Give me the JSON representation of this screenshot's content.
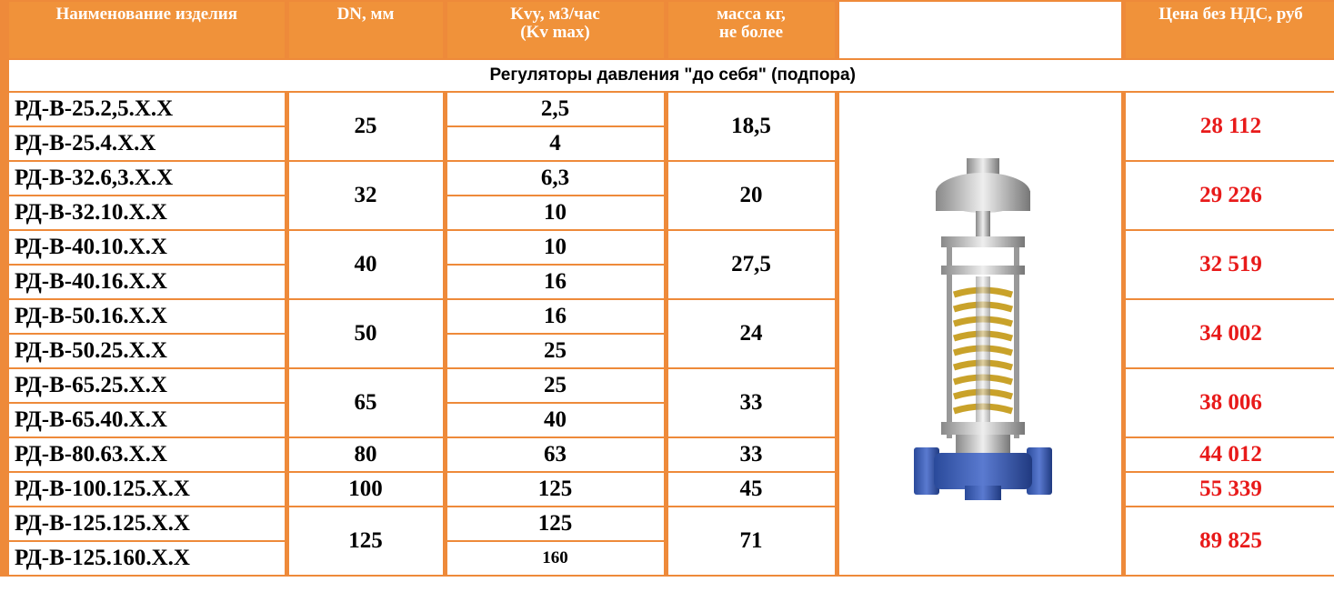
{
  "header": [
    "Наименование  изделия",
    "DN, мм",
    "Kvy, м3/час\n(Kv max)",
    "масса кг,\nне более",
    "Цена без НДС, руб"
  ],
  "section": "Регуляторы давления \"до себя\" (подпора)",
  "groups": [
    {
      "dn": "25",
      "mass": "18,5",
      "price": "28 112",
      "items": [
        {
          "name": "РД-В-25.2,5.Х.Х",
          "kv": "2,5"
        },
        {
          "name": "РД-В-25.4.Х.Х",
          "kv": "4"
        }
      ]
    },
    {
      "dn": "32",
      "mass": "20",
      "price": "29 226",
      "items": [
        {
          "name": "РД-В-32.6,3.Х.Х",
          "kv": "6,3"
        },
        {
          "name": "РД-В-32.10.Х.Х",
          "kv": "10"
        }
      ]
    },
    {
      "dn": "40",
      "mass": "27,5",
      "price": "32 519",
      "items": [
        {
          "name": "РД-В-40.10.Х.Х",
          "kv": "10"
        },
        {
          "name": "РД-В-40.16.Х.Х",
          "kv": "16"
        }
      ]
    },
    {
      "dn": "50",
      "mass": "24",
      "price": "34 002",
      "items": [
        {
          "name": "РД-В-50.16.Х.Х",
          "kv": "16"
        },
        {
          "name": "РД-В-50.25.Х.Х",
          "kv": "25"
        }
      ]
    },
    {
      "dn": "65",
      "mass": "33",
      "price": "38 006",
      "items": [
        {
          "name": "РД-В-65.25.Х.Х",
          "kv": "25"
        },
        {
          "name": "РД-В-65.40.Х.Х",
          "kv": "40"
        }
      ]
    },
    {
      "dn": "80",
      "mass": "33",
      "price": "44 012",
      "items": [
        {
          "name": "РД-В-80.63.Х.Х",
          "kv": "63"
        }
      ]
    },
    {
      "dn": "100",
      "mass": "45",
      "price": "55 339",
      "items": [
        {
          "name": "РД-В-100.125.Х.Х",
          "kv": "125"
        }
      ]
    },
    {
      "dn": "125",
      "mass": "71",
      "price": "89 825",
      "items": [
        {
          "name": "РД-В-125.125.Х.Х",
          "kv": "125"
        },
        {
          "name": "РД-В-125.160.Х.Х",
          "kv": "160"
        }
      ]
    }
  ]
}
